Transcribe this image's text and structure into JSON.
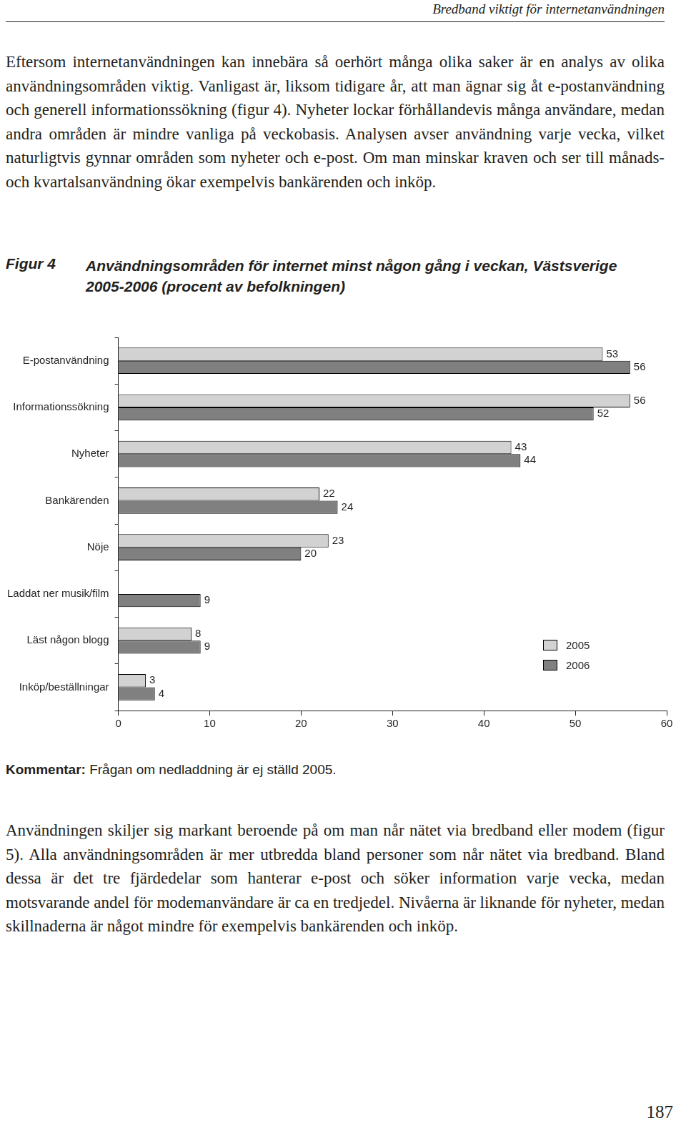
{
  "header": "Bredband viktigt för internetanvändningen",
  "intro": "Eftersom internetanvändningen kan innebära så oerhört många olika saker är en analys av olika användningsområden viktig. Vanligast är, liksom tidigare år, att man ägnar sig åt e-postanvändning och generell informationssökning (figur 4). Nyheter lockar förhållandevis många användare, medan andra områden är mindre vanliga på veckobasis. Analysen avser användning varje vecka, vilket naturligtvis gynnar områden som nyheter och e-post. Om man minskar kraven och ser till månads- och kvartalsanvändning ökar exempelvis bankärenden och inköp.",
  "figure": {
    "label": "Figur 4",
    "title": "Användningsområden för internet minst någon gång i veckan, Västsverige 2005-2006 (procent av befolkningen)"
  },
  "chart_data": {
    "type": "bar",
    "orientation": "horizontal",
    "categories": [
      "E-postanvändning",
      "Informationssökning",
      "Nyheter",
      "Bankärenden",
      "Nöje",
      "Laddat ner musik/film",
      "Läst någon blogg",
      "Inköp/beställningar"
    ],
    "series": [
      {
        "name": "2005",
        "color": "#d2d2d2",
        "values": [
          53,
          56,
          43,
          22,
          23,
          null,
          8,
          3
        ]
      },
      {
        "name": "2006",
        "color": "#808080",
        "values": [
          56,
          52,
          44,
          24,
          20,
          9,
          9,
          4
        ]
      }
    ],
    "xlim": [
      0,
      60
    ],
    "xticks": [
      0,
      10,
      20,
      30,
      40,
      50,
      60
    ],
    "grid": false,
    "legend": "lower right",
    "data_labels": true
  },
  "comment": {
    "label": "Kommentar:",
    "text": "Frågan om nedladdning är ej ställd 2005."
  },
  "body": "Användningen skiljer sig markant beroende på om man når nätet via bredband eller modem (figur 5). Alla användningsområden är mer utbredda bland personer som når nätet via bredband. Bland dessa är det tre fjärdedelar som hanterar e-post och söker information varje vecka, medan motsvarande andel för modemanvändare är ca en tredjedel. Nivåerna är liknande för nyheter, medan skillnaderna är något mindre för exempelvis bankärenden och inköp.",
  "page_number": 187
}
